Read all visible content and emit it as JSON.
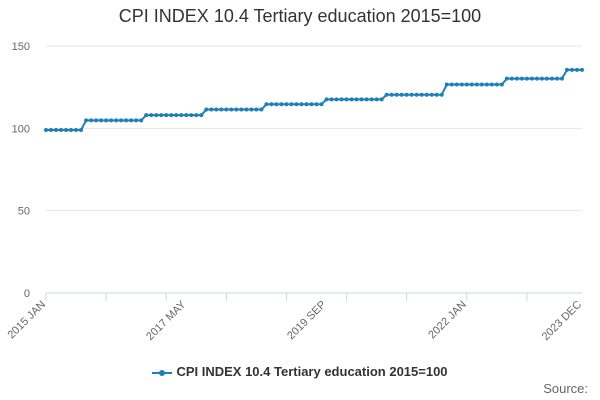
{
  "chart_data": {
    "type": "line",
    "title": "CPI INDEX 10.4 Tertiary education 2015=100",
    "xlabel": "",
    "ylabel": "",
    "x_start": "2015-01",
    "x_end": "2023-12",
    "x_tick_labels": [
      "2015 JAN",
      "2017 MAY",
      "2019 SEP",
      "2022 JAN",
      "2023 DEC"
    ],
    "x_tick_months": [
      "2015-01",
      "2017-05",
      "2019-09",
      "2022-01",
      "2023-12"
    ],
    "ylim": [
      0,
      150
    ],
    "yticks": [
      0,
      50,
      100,
      150
    ],
    "grid": true,
    "legend_position": "bottom",
    "series": [
      {
        "name": "CPI INDEX 10.4 Tertiary education 2015=100",
        "color": "#1f7fb7",
        "steps": [
          {
            "from": "2015-01",
            "value": 99.0
          },
          {
            "from": "2015-09",
            "value": 104.8
          },
          {
            "from": "2016-09",
            "value": 108.0
          },
          {
            "from": "2017-09",
            "value": 111.4
          },
          {
            "from": "2018-09",
            "value": 114.6
          },
          {
            "from": "2019-09",
            "value": 117.6
          },
          {
            "from": "2020-09",
            "value": 120.4
          },
          {
            "from": "2021-09",
            "value": 126.6
          },
          {
            "from": "2022-09",
            "value": 130.2
          },
          {
            "from": "2023-09",
            "value": 135.5
          }
        ]
      }
    ]
  },
  "credits": "Source:"
}
